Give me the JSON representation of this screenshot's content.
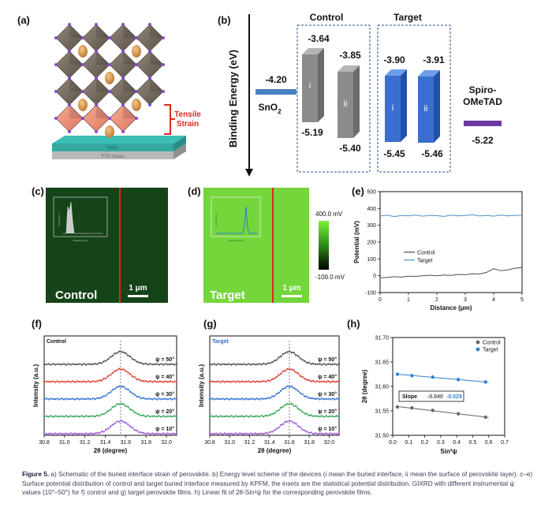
{
  "panels": {
    "a": {
      "label": "(a)",
      "strain_label_line1": "Tensile",
      "strain_label_line2": "Strain",
      "layer_top": "SnO₂",
      "layer_bottom": "FTO Glass"
    },
    "b": {
      "label": "(b)",
      "y_axis_label": "Binding Energy (eV)",
      "group_control": "Control",
      "group_target": "Target",
      "sno2_label": "SnO",
      "sno2_sub": "2",
      "sno2_value": "-4.20",
      "spiro_label_line1": "Spiro-",
      "spiro_label_line2": "OMeTAD",
      "spiro_value": "-5.22",
      "colors": {
        "sno2": "#4a7fc4",
        "spiro": "#6a3aa2",
        "control": "#8a8a8a",
        "target": "#3a6fd0"
      },
      "bars": [
        {
          "id": "control-i",
          "group": "control",
          "name": "i",
          "top": "-3.64",
          "bottom": "-5.19"
        },
        {
          "id": "control-ii",
          "group": "control",
          "name": "ii",
          "top": "-3.85",
          "bottom": "-5.40"
        },
        {
          "id": "target-i",
          "group": "target",
          "name": "i",
          "top": "-3.90",
          "bottom": "-5.45"
        },
        {
          "id": "target-ii",
          "group": "target",
          "name": "ii",
          "top": "-3.91",
          "bottom": "-5.46"
        }
      ]
    },
    "c": {
      "label": "(c)",
      "sample_label": "Control",
      "scale_bar": "1 μm",
      "inset_ylabel": "Counts (a.u.)",
      "inset_xlabel": "Potential (mV)"
    },
    "d": {
      "label": "(d)",
      "sample_label": "Target",
      "scale_bar": "1 μm",
      "inset_ylabel": "Counts (a.u.)",
      "inset_xlabel": "Potential (mV)",
      "colorbar_max": "400.0 mV",
      "colorbar_min": "-100.0 mV"
    },
    "e": {
      "label": "(e)"
    },
    "f": {
      "label": "(f)"
    },
    "g": {
      "label": "(g)"
    },
    "h": {
      "label": "(h)"
    }
  },
  "chart_data": [
    {
      "id": "e",
      "type": "line",
      "xlabel": "Distance (μm)",
      "ylabel": "Potential (mV)",
      "xlim": [
        0,
        5
      ],
      "ylim": [
        -100,
        500
      ],
      "xticks": [
        "0",
        "1",
        "2",
        "3",
        "4",
        "5"
      ],
      "yticks": [
        "-100",
        "0",
        "100",
        "200",
        "300",
        "400",
        "500"
      ],
      "legend_position": "middle-left",
      "series": [
        {
          "name": "Control",
          "color": "#4d4d4d",
          "x": [
            0,
            0.25,
            0.5,
            0.75,
            1,
            1.25,
            1.5,
            1.75,
            2,
            2.25,
            2.5,
            2.75,
            3,
            3.25,
            3.5,
            3.75,
            4,
            4.25,
            4.5,
            4.75,
            5
          ],
          "y": [
            -12,
            -10,
            -6,
            -8,
            -3,
            -4,
            0,
            3,
            0,
            4,
            2,
            8,
            6,
            12,
            10,
            20,
            42,
            30,
            35,
            45,
            48
          ]
        },
        {
          "name": "Target",
          "color": "#4a90c8",
          "x": [
            0,
            0.25,
            0.5,
            0.75,
            1,
            1.25,
            1.5,
            1.75,
            2,
            2.25,
            2.5,
            2.75,
            3,
            3.25,
            3.5,
            3.75,
            4,
            4.25,
            4.5,
            4.75,
            5
          ],
          "y": [
            355,
            360,
            352,
            358,
            356,
            361,
            354,
            359,
            357,
            353,
            360,
            356,
            358,
            362,
            355,
            359,
            354,
            361,
            356,
            358,
            360
          ]
        }
      ]
    },
    {
      "id": "f",
      "type": "line",
      "panel_title": "Control",
      "xlabel": "2θ (degree)",
      "ylabel": "Intensity (a.u.)",
      "xlim": [
        30.8,
        32.1
      ],
      "xticks": [
        "30.8",
        "31.0",
        "31.2",
        "31.4",
        "31.6",
        "31.8",
        "32.0"
      ],
      "reference_line_x": 31.55,
      "series": [
        {
          "name": "ψ = 50°",
          "color": "#555555"
        },
        {
          "name": "ψ = 40°",
          "color": "#e0443a"
        },
        {
          "name": "ψ = 30°",
          "color": "#3a78d4"
        },
        {
          "name": "ψ = 20°",
          "color": "#3aaa5a"
        },
        {
          "name": "ψ = 10°",
          "color": "#a060d8"
        }
      ]
    },
    {
      "id": "g",
      "type": "line",
      "panel_title": "Target",
      "xlabel": "2θ (degree)",
      "ylabel": "Intensity (a.u.)",
      "xlim": [
        30.8,
        32.1
      ],
      "xticks": [
        "30.8",
        "31.0",
        "31.2",
        "31.4",
        "31.6",
        "31.8",
        "32.0"
      ],
      "reference_line_x": 31.6,
      "series": [
        {
          "name": "ψ = 50°",
          "color": "#555555"
        },
        {
          "name": "ψ = 40°",
          "color": "#e0443a"
        },
        {
          "name": "ψ = 30°",
          "color": "#3a78d4"
        },
        {
          "name": "ψ = 20°",
          "color": "#3aaa5a"
        },
        {
          "name": "ψ = 10°",
          "color": "#a060d8"
        }
      ]
    },
    {
      "id": "h",
      "type": "scatter",
      "xlabel": "Sin²ψ",
      "ylabel": "2θ (degree)",
      "xlim": [
        0,
        0.7
      ],
      "ylim": [
        31.5,
        31.7
      ],
      "xticks": [
        "0.0",
        "0.1",
        "0.2",
        "0.3",
        "0.4",
        "0.5",
        "0.6",
        "0.7"
      ],
      "yticks": [
        "31.50",
        "31.55",
        "31.60",
        "31.65",
        "31.70"
      ],
      "legend_position": "top-right",
      "slope_label": "Slope",
      "slope_control": "-0.040",
      "slope_target": "-0.029",
      "series": [
        {
          "name": "Control",
          "color": "#666666",
          "x": [
            0.03,
            0.12,
            0.25,
            0.41,
            0.58
          ],
          "y": [
            31.558,
            31.556,
            31.551,
            31.544,
            31.537
          ]
        },
        {
          "name": "Target",
          "color": "#2f7fd0",
          "x": [
            0.03,
            0.12,
            0.25,
            0.41,
            0.58
          ],
          "y": [
            31.625,
            31.622,
            31.619,
            31.614,
            31.609
          ]
        }
      ]
    }
  ],
  "caption": {
    "lead": "Figure 5.",
    "text": " a) Schematic of the buried interface strain of perovskite. b) Energy level scheme of the devices (i mean the buried interface, ii mean the surface of perovskite layer). c–e) Surface potential distribution of control and target buried interface measured by KPFM, the insets are the statistical potential distribution. GIXRD with different instrumental ψ values (10°–50°) for f) control and g) target perovskite films. h) Linear fit of 2θ-Sin²ψ for the corresponding perovskite films."
  }
}
